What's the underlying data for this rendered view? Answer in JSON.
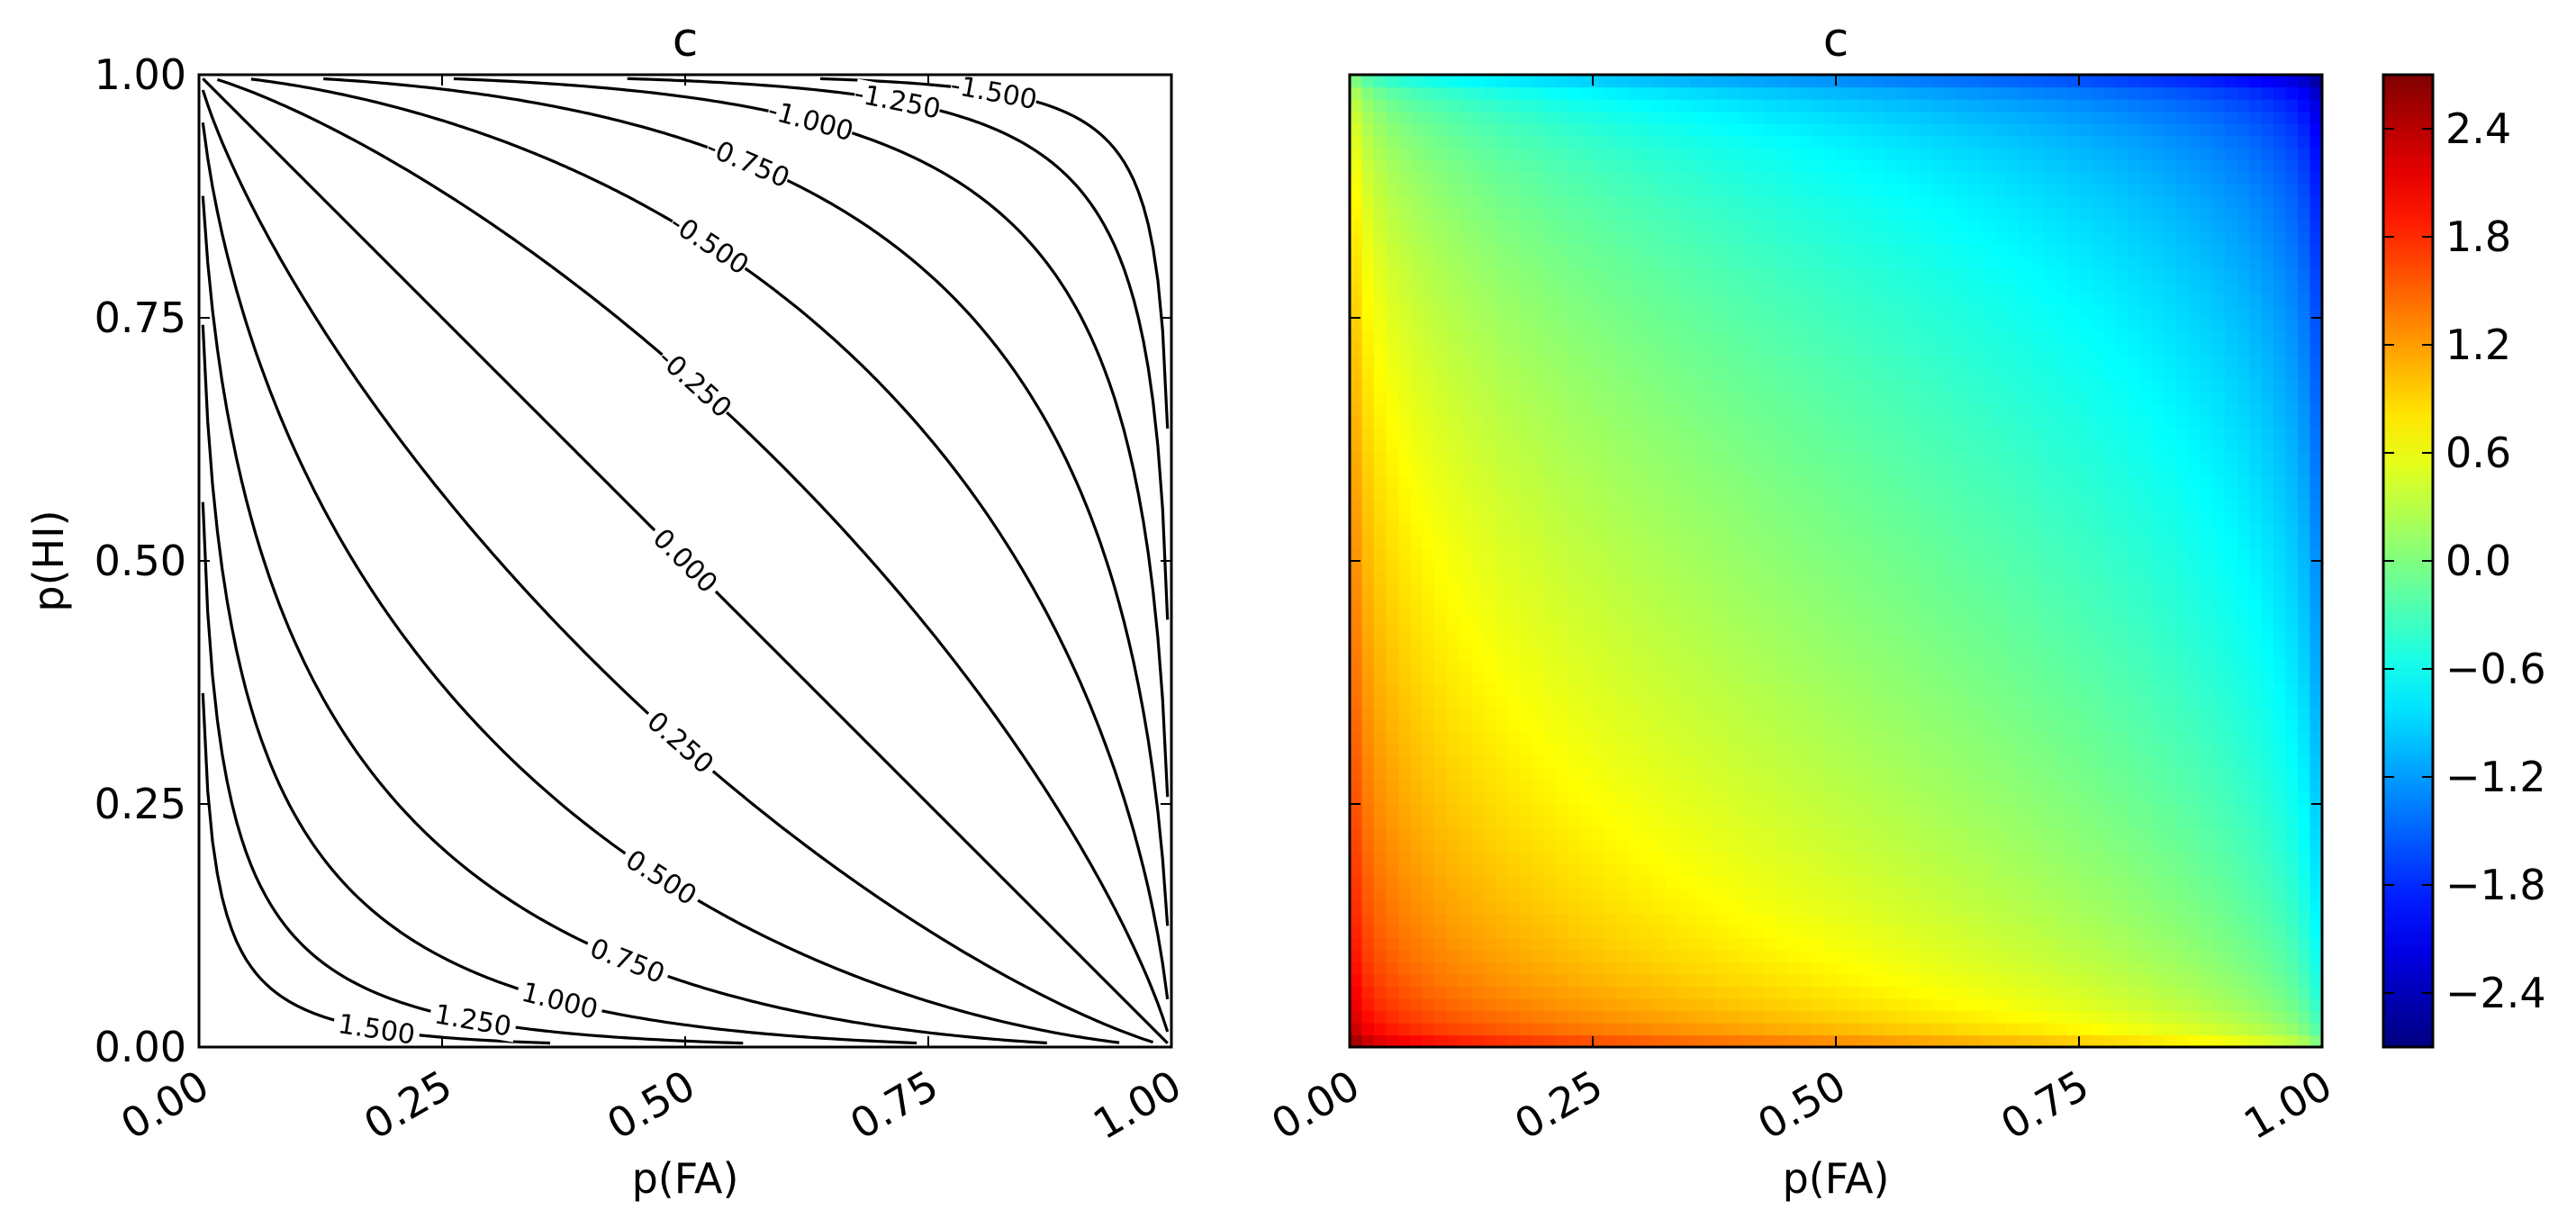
{
  "chart_data": [
    {
      "type": "contour",
      "title": "c",
      "xlabel": "p(FA)",
      "ylabel": "p(HI)",
      "xlim": [
        0,
        1
      ],
      "ylim": [
        0,
        1
      ],
      "xticks": [
        "0.00",
        "0.25",
        "0.50",
        "0.75",
        "1.00"
      ],
      "yticks": [
        "0.00",
        "0.25",
        "0.50",
        "0.75",
        "1.00"
      ],
      "levels": [
        -1.5,
        -1.25,
        -1.0,
        -0.75,
        -0.5,
        -0.25,
        0.0,
        0.25,
        0.5,
        0.75,
        1.0,
        1.25,
        1.5
      ],
      "level_labels": [
        "-1.500",
        "-1.250",
        "-1.000",
        "-0.750",
        "-0.500",
        "-0.250",
        "0.000",
        "0.250",
        "0.500",
        "0.750",
        "1.000",
        "1.250",
        "1.500"
      ],
      "function": "c = -(z(p(HI)) + z(p(FA))) / 2",
      "line_color": "#000000"
    },
    {
      "type": "heatmap",
      "title": "c",
      "xlabel": "p(FA)",
      "ylabel": "",
      "xlim": [
        0,
        1
      ],
      "ylim": [
        0,
        1
      ],
      "xticks": [
        "0.00",
        "0.25",
        "0.50",
        "0.75",
        "1.00"
      ],
      "function": "c = -(z(p(HI)) + z(p(FA))) / 2",
      "colormap": "jet",
      "vmin": -2.7,
      "vmax": 2.7,
      "colorbar_ticks": [
        "2.4",
        "1.8",
        "1.2",
        "0.6",
        "0.0",
        "−0.6",
        "−1.2",
        "−1.8",
        "−2.4"
      ],
      "colorbar_values": [
        2.4,
        1.8,
        1.2,
        0.6,
        0.0,
        -0.6,
        -1.2,
        -1.8,
        -2.4
      ]
    }
  ]
}
